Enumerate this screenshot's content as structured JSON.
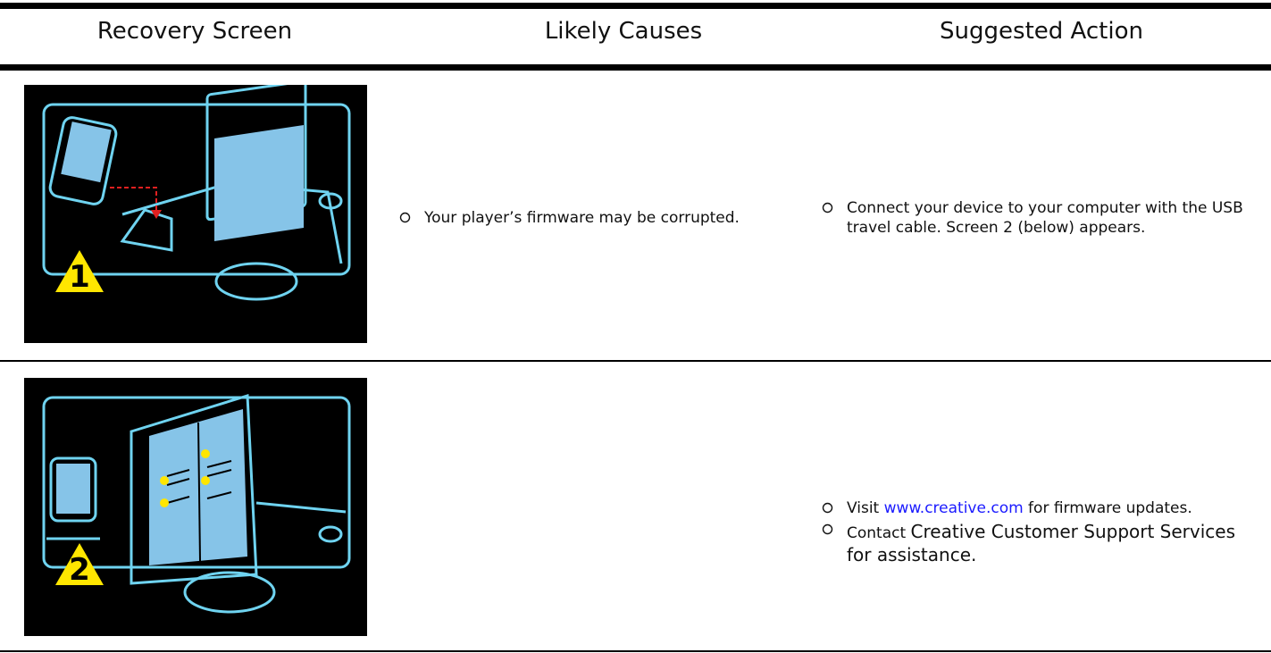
{
  "table": {
    "headers": [
      "Recovery Screen",
      "Likely Causes",
      "Suggested Action"
    ],
    "rows": [
      {
        "badge": "1",
        "causes": [
          "Your player’s firmware may be corrupted."
        ],
        "actions": [
          [
            "Connect your device to your computer with the USB travel cable. Screen 2 (below) appears."
          ]
        ]
      },
      {
        "badge": "2",
        "actions": [
          [
            "Visit ",
            "www.creative.com",
            " for firmware updates."
          ],
          [
            "Contact ",
            "Creative Customer Support Services for assistance."
          ]
        ]
      }
    ]
  }
}
